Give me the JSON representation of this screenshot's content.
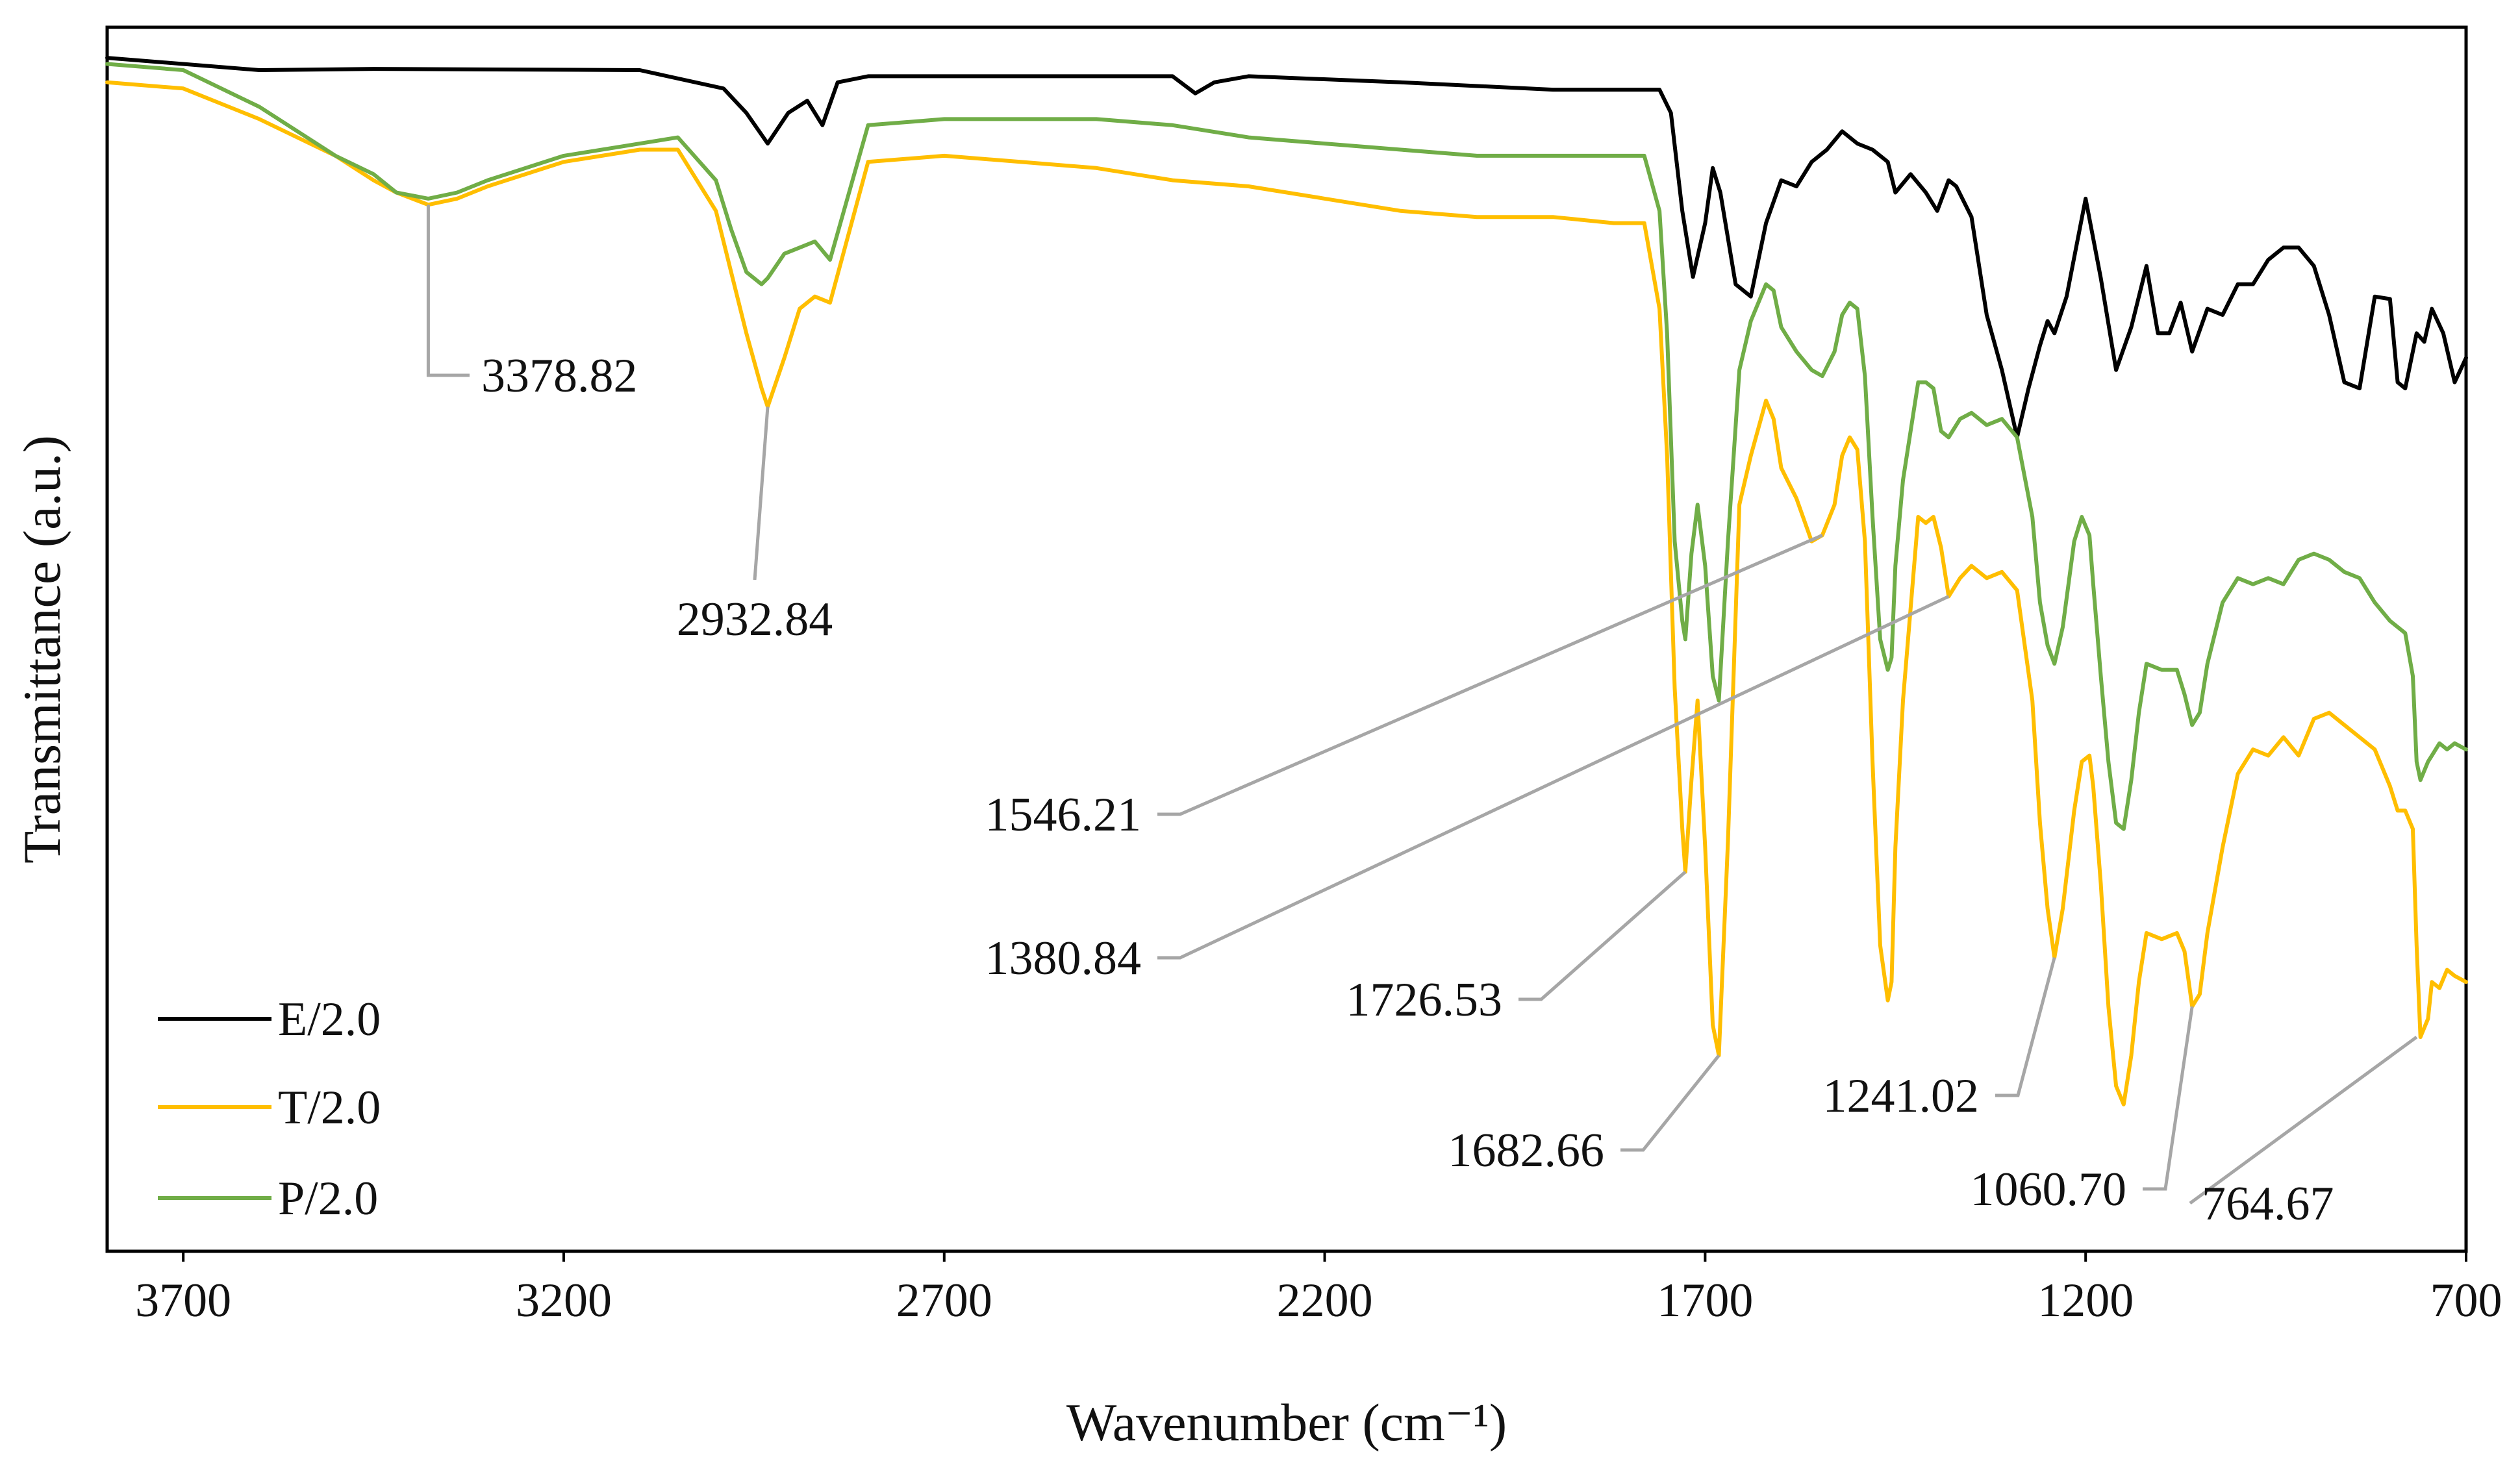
{
  "chart_data": {
    "type": "line",
    "title": "",
    "xlabel": "Wavenumber (cm⁻¹)",
    "ylabel": "Transmittance (a.u.)",
    "xlim": [
      3800,
      700
    ],
    "x_reversed": true,
    "ylim": [
      0,
      100
    ],
    "y_ticks_shown": false,
    "grid": false,
    "legend_position": "bottom-left",
    "x_ticks": [
      {
        "value": 3700,
        "label": "3700"
      },
      {
        "value": 3200,
        "label": "3200"
      },
      {
        "value": 2700,
        "label": "2700"
      },
      {
        "value": 2200,
        "label": "2200"
      },
      {
        "value": 1700,
        "label": "1700"
      },
      {
        "value": 1200,
        "label": "1200"
      },
      {
        "value": 700,
        "label": "700"
      }
    ],
    "series": [
      {
        "name": "E/2.0",
        "color": "#000000",
        "x": [
          3800,
          3600,
          3450,
          3100,
          2990,
          2960,
          2932,
          2905,
          2880,
          2860,
          2840,
          2800,
          2600,
          2400,
          2370,
          2345,
          2300,
          2100,
          1900,
          1760,
          1745,
          1730,
          1716,
          1700,
          1690,
          1680,
          1660,
          1640,
          1620,
          1600,
          1580,
          1560,
          1540,
          1520,
          1500,
          1480,
          1460,
          1450,
          1430,
          1410,
          1395,
          1380,
          1370,
          1350,
          1330,
          1310,
          1290,
          1275,
          1260,
          1250,
          1241,
          1225,
          1200,
          1180,
          1160,
          1140,
          1120,
          1105,
          1090,
          1075,
          1060,
          1040,
          1020,
          1000,
          980,
          960,
          940,
          920,
          900,
          880,
          860,
          840,
          820,
          800,
          790,
          780,
          765,
          755,
          745,
          730,
          715,
          700
        ],
        "y": [
          97.5,
          96.5,
          96.6,
          96.5,
          95.0,
          93.0,
          90.5,
          93.0,
          94.0,
          92.0,
          95.5,
          96.0,
          96.0,
          96.0,
          94.6,
          95.5,
          96.0,
          95.5,
          94.9,
          94.9,
          93.0,
          85.0,
          79.6,
          84.0,
          88.5,
          86.5,
          79.0,
          78.0,
          84.0,
          87.5,
          87.0,
          89.0,
          90.0,
          91.5,
          90.5,
          90.0,
          89.0,
          86.5,
          88.0,
          86.5,
          85.0,
          87.5,
          87.0,
          84.5,
          76.5,
          72.0,
          66.5,
          70.5,
          74.0,
          76.0,
          75.0,
          78.0,
          86.0,
          79.5,
          72.0,
          75.5,
          80.5,
          75.0,
          75.0,
          77.5,
          73.5,
          77.0,
          76.5,
          79.0,
          79.0,
          81.0,
          82.0,
          82.0,
          80.5,
          76.5,
          71.0,
          70.5,
          78.0,
          77.8,
          71.0,
          70.5,
          75.0,
          74.3,
          77.0,
          75.0,
          71.0,
          73.0
        ]
      },
      {
        "name": "T/2.0",
        "color": "#FFBE00",
        "x": [
          3800,
          3700,
          3600,
          3500,
          3450,
          3420,
          3378,
          3340,
          3300,
          3200,
          3100,
          3050,
          3000,
          2980,
          2960,
          2940,
          2932,
          2910,
          2890,
          2870,
          2850,
          2800,
          2700,
          2600,
          2500,
          2400,
          2300,
          2200,
          2100,
          2000,
          1900,
          1820,
          1780,
          1760,
          1750,
          1740,
          1730,
          1726,
          1718,
          1710,
          1700,
          1690,
          1682,
          1670,
          1655,
          1640,
          1620,
          1610,
          1600,
          1580,
          1560,
          1546,
          1530,
          1520,
          1510,
          1500,
          1490,
          1480,
          1470,
          1460,
          1455,
          1450,
          1440,
          1420,
          1410,
          1400,
          1390,
          1380,
          1365,
          1350,
          1330,
          1310,
          1290,
          1270,
          1260,
          1250,
          1241,
          1230,
          1215,
          1205,
          1195,
          1190,
          1180,
          1170,
          1160,
          1150,
          1140,
          1130,
          1120,
          1100,
          1080,
          1070,
          1060,
          1050,
          1040,
          1020,
          1000,
          980,
          960,
          940,
          920,
          900,
          880,
          860,
          840,
          820,
          800,
          790,
          780,
          770,
          765,
          760,
          750,
          745,
          735,
          725,
          715,
          700
        ],
        "y": [
          95.5,
          95.0,
          92.5,
          89.5,
          87.5,
          86.5,
          85.5,
          86.0,
          87.0,
          89.0,
          90.0,
          90.0,
          85.0,
          80.0,
          75.0,
          70.5,
          69.0,
          73.0,
          77.0,
          78.0,
          77.5,
          89.0,
          89.5,
          89.0,
          88.5,
          87.5,
          87.0,
          86.0,
          85.0,
          84.5,
          84.5,
          84.0,
          84.0,
          77.0,
          65.0,
          46.0,
          34.5,
          31.0,
          38.5,
          45.0,
          33.0,
          18.5,
          16.0,
          33.5,
          61.0,
          65.0,
          69.5,
          68.0,
          64.0,
          61.5,
          58.0,
          58.5,
          61.0,
          65.0,
          66.5,
          65.5,
          58.0,
          40.0,
          25.0,
          20.5,
          22.0,
          33.0,
          45.0,
          60.0,
          59.5,
          60.0,
          57.5,
          53.5,
          55.0,
          56.0,
          55.0,
          55.5,
          54.0,
          45.0,
          35.0,
          28.0,
          24.0,
          28.0,
          36.0,
          40.0,
          40.5,
          38.0,
          30.0,
          20.0,
          13.5,
          12.0,
          16.0,
          22.0,
          26.0,
          25.5,
          26.0,
          24.5,
          20.0,
          21.0,
          26.0,
          33.0,
          39.0,
          41.0,
          40.5,
          42.0,
          40.5,
          43.5,
          44.0,
          43.0,
          42.0,
          41.0,
          38.0,
          36.0,
          36.0,
          34.5,
          25.0,
          17.5,
          19.0,
          22.0,
          21.5,
          23.0,
          22.5,
          22.0
        ]
      },
      {
        "name": "P/2.0",
        "color": "#70AD47",
        "x": [
          3800,
          3700,
          3600,
          3500,
          3450,
          3420,
          3378,
          3340,
          3300,
          3200,
          3100,
          3050,
          3000,
          2980,
          2960,
          2940,
          2932,
          2910,
          2890,
          2870,
          2850,
          2800,
          2700,
          2600,
          2500,
          2400,
          2300,
          2200,
          2100,
          2000,
          1900,
          1820,
          1780,
          1760,
          1750,
          1740,
          1730,
          1726,
          1718,
          1710,
          1700,
          1690,
          1682,
          1670,
          1655,
          1640,
          1620,
          1610,
          1600,
          1580,
          1560,
          1546,
          1530,
          1520,
          1510,
          1500,
          1490,
          1480,
          1470,
          1460,
          1455,
          1450,
          1440,
          1420,
          1410,
          1400,
          1390,
          1380,
          1365,
          1350,
          1330,
          1310,
          1290,
          1270,
          1260,
          1250,
          1241,
          1230,
          1215,
          1205,
          1195,
          1190,
          1180,
          1170,
          1160,
          1150,
          1140,
          1130,
          1120,
          1100,
          1080,
          1070,
          1060,
          1050,
          1040,
          1020,
          1000,
          980,
          960,
          940,
          920,
          900,
          880,
          860,
          840,
          820,
          800,
          790,
          780,
          770,
          765,
          760,
          750,
          745,
          735,
          725,
          715,
          700
        ],
        "y": [
          97.0,
          96.5,
          93.5,
          89.5,
          88.0,
          86.5,
          86.0,
          86.5,
          87.5,
          89.5,
          90.5,
          91.0,
          87.5,
          83.5,
          80.0,
          79.0,
          79.5,
          81.5,
          82.0,
          82.5,
          81.0,
          92.0,
          92.5,
          92.5,
          92.5,
          92.0,
          91.0,
          90.5,
          90.0,
          89.5,
          89.5,
          89.5,
          89.5,
          85.0,
          75.0,
          58.0,
          51.5,
          50.0,
          57.0,
          61.0,
          56.0,
          47.0,
          45.0,
          58.0,
          72.0,
          76.0,
          79.0,
          78.5,
          75.5,
          73.5,
          72.0,
          71.5,
          73.5,
          76.5,
          77.5,
          77.0,
          71.5,
          60.0,
          50.0,
          47.5,
          48.5,
          56.0,
          63.0,
          71.0,
          71.0,
          70.5,
          67.0,
          66.5,
          68.0,
          68.5,
          67.5,
          68.0,
          66.5,
          60.0,
          53.0,
          49.5,
          48.0,
          51.0,
          58.0,
          60.0,
          58.5,
          54.5,
          47.0,
          40.0,
          35.0,
          34.5,
          38.5,
          44.0,
          48.0,
          47.5,
          47.5,
          45.5,
          43.0,
          44.0,
          48.0,
          53.0,
          55.0,
          54.5,
          55.0,
          54.5,
          56.5,
          57.0,
          56.5,
          55.5,
          55.0,
          53.0,
          51.5,
          51.0,
          50.5,
          47.0,
          40.0,
          38.5,
          40.0,
          40.5,
          41.5,
          41.0,
          41.5,
          41.0
        ]
      }
    ],
    "annotations": [
      {
        "label": "3378.82",
        "series": "T/2.0",
        "x": 3378,
        "y": 85.5
      },
      {
        "label": "2932.84",
        "series": "T/2.0",
        "x": 2932,
        "y": 69.0
      },
      {
        "label": "1546.21",
        "series": "T/2.0",
        "x": 1546,
        "y": 58.5
      },
      {
        "label": "1380.84",
        "series": "T/2.0",
        "x": 1380,
        "y": 53.5
      },
      {
        "label": "1726.53",
        "series": "T/2.0",
        "x": 1726,
        "y": 31.0
      },
      {
        "label": "1682.66",
        "series": "T/2.0",
        "x": 1682,
        "y": 16.0
      },
      {
        "label": "1241.02",
        "series": "T/2.0",
        "x": 1241,
        "y": 24.0
      },
      {
        "label": "1060.70",
        "series": "T/2.0",
        "x": 1060,
        "y": 20.0
      },
      {
        "label": "764.67",
        "series": "T/2.0",
        "x": 765,
        "y": 17.5
      }
    ]
  }
}
